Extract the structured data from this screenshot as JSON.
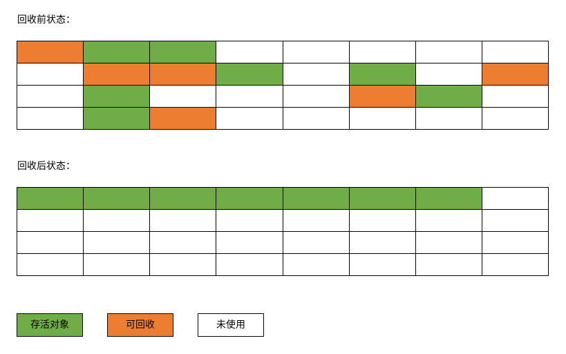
{
  "colors": {
    "live": "#70ad47",
    "reclaimable": "#ed7d31",
    "unused": "#ffffff"
  },
  "before": {
    "label": "回收前状态：",
    "grid": [
      [
        "reclaimable",
        "live",
        "live",
        "unused",
        "unused",
        "unused",
        "unused",
        "unused"
      ],
      [
        "unused",
        "reclaimable",
        "reclaimable",
        "live",
        "unused",
        "live",
        "unused",
        "reclaimable"
      ],
      [
        "unused",
        "live",
        "unused",
        "unused",
        "unused",
        "reclaimable",
        "live",
        "unused"
      ],
      [
        "unused",
        "live",
        "reclaimable",
        "unused",
        "unused",
        "unused",
        "unused",
        "unused"
      ]
    ]
  },
  "after": {
    "label": "回收后状态：",
    "grid": [
      [
        "live",
        "live",
        "live",
        "live",
        "live",
        "live",
        "live",
        "unused"
      ],
      [
        "unused",
        "unused",
        "unused",
        "unused",
        "unused",
        "unused",
        "unused",
        "unused"
      ],
      [
        "unused",
        "unused",
        "unused",
        "unused",
        "unused",
        "unused",
        "unused",
        "unused"
      ],
      [
        "unused",
        "unused",
        "unused",
        "unused",
        "unused",
        "unused",
        "unused",
        "unused"
      ]
    ]
  },
  "legend": {
    "live": "存活对象",
    "reclaimable": "可回收",
    "unused": "未使用"
  }
}
